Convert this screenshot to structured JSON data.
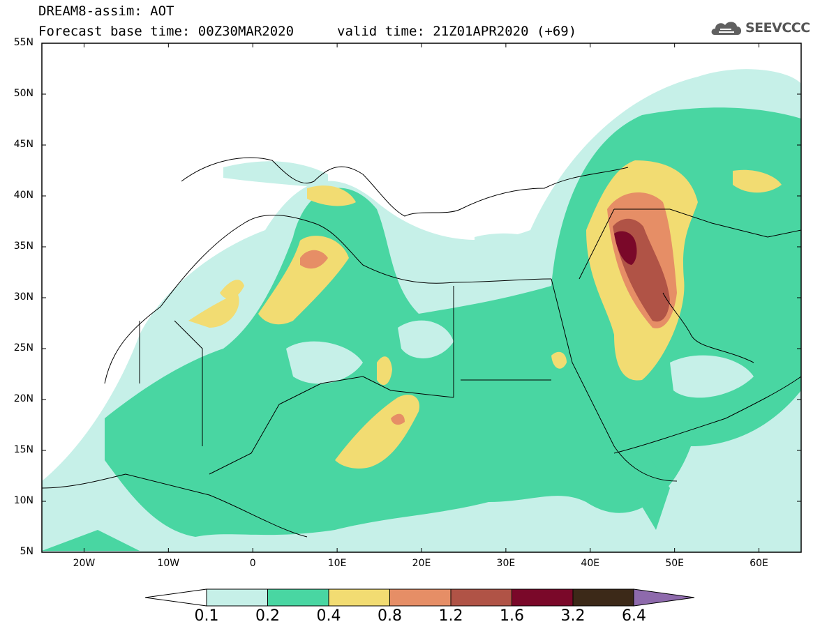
{
  "header": {
    "model_line": "DREAM8-assim: AOT",
    "base_time": "Forecast base time: 00Z30MAR2020",
    "valid_time": "valid time: 21Z01APR2020 (+69)"
  },
  "logo": {
    "text": "SEEVCCC",
    "icon": "cloud-icon"
  },
  "axes": {
    "lat_labels": [
      "55N",
      "50N",
      "45N",
      "40N",
      "35N",
      "30N",
      "25N",
      "20N",
      "15N",
      "10N",
      "5N"
    ],
    "lon_labels": [
      "20W",
      "10W",
      "0",
      "10E",
      "20E",
      "30E",
      "40E",
      "50E",
      "60E"
    ],
    "lat_range": [
      5,
      55
    ],
    "lon_range": [
      -25,
      65
    ]
  },
  "colorbar": {
    "labels": [
      "0.1",
      "0.2",
      "0.4",
      "0.8",
      "1.2",
      "1.6",
      "3.2",
      "6.4"
    ],
    "colors": [
      "#c6f0e8",
      "#49d6a2",
      "#f2dc72",
      "#e68e66",
      "#b05346",
      "#7a0829",
      "#3c2918",
      "#8e6aac"
    ],
    "under_color": "#ffffff"
  },
  "chart_data": {
    "type": "heatmap",
    "title": "DREAM8-assim: AOT",
    "variable": "AOT",
    "levels": [
      0.1,
      0.2,
      0.4,
      0.8,
      1.2,
      1.6,
      3.2,
      6.4
    ],
    "xlim": [
      -25,
      65
    ],
    "ylim": [
      5,
      55
    ],
    "xticks": [
      "20W",
      "10W",
      "0",
      "10E",
      "20E",
      "30E",
      "40E",
      "50E",
      "60E"
    ],
    "yticks": [
      "55N",
      "50N",
      "45N",
      "40N",
      "35N",
      "30N",
      "25N",
      "20N",
      "15N",
      "10N",
      "5N"
    ],
    "max_region": "Iraq (around 44E, 34N), AOT 1.6-3.2"
  }
}
